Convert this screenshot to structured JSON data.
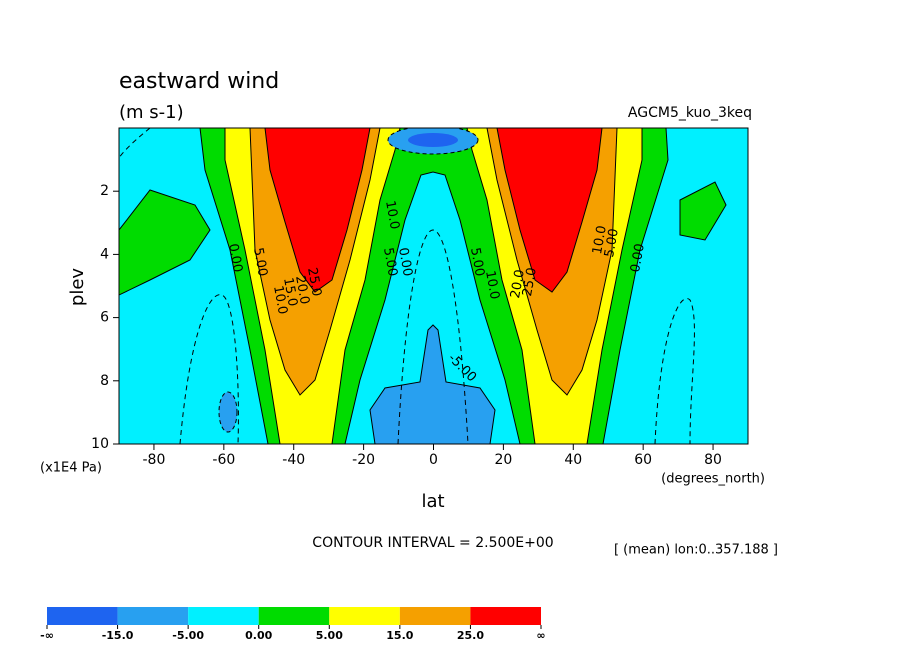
{
  "chart_data": {
    "type": "contour",
    "title": "eastward wind",
    "subtitle": "(m s-1)",
    "model": "AGCM5_kuo_3keq",
    "xlabel": "lat",
    "ylabel": "plev",
    "xunits": "(degrees_north)",
    "yunits": "(x1E4 Pa)",
    "note": "CONTOUR INTERVAL = 2.500E+00",
    "mean_note": "[ (mean) lon:0..357.188 ]",
    "xlim": [
      -90,
      90
    ],
    "xticks": [
      -80,
      -60,
      -40,
      -20,
      0,
      20,
      40,
      60,
      80
    ],
    "ylim": [
      0,
      10
    ],
    "yticks": [
      2,
      4,
      6,
      8,
      10
    ],
    "y_reversed": true,
    "levels": [
      "-∞",
      {
        "value": -15,
        "label": "-15.0"
      },
      {
        "value": -5,
        "label": "-5.00"
      },
      {
        "value": 0,
        "label": "0.00"
      },
      {
        "value": 5,
        "label": "5.00"
      },
      {
        "value": 15,
        "label": "15.0"
      },
      {
        "value": 25,
        "label": "25.0"
      },
      "∞"
    ],
    "colors": [
      "#1e64f0",
      "#28a0f0",
      "#00f0ff",
      "#00dc00",
      "#ffff00",
      "#f5a000",
      "#ff0000"
    ],
    "contour_labels": [
      {
        "value": 0,
        "label": "0.00"
      },
      {
        "value": 5,
        "label": "5.00"
      },
      {
        "value": 10,
        "label": "10.0"
      },
      {
        "value": 15,
        "label": "15.0"
      },
      {
        "value": 20,
        "label": "20.0"
      },
      {
        "value": 25,
        "label": "25.0"
      },
      {
        "value": -5,
        "label": "-5.00"
      }
    ]
  }
}
